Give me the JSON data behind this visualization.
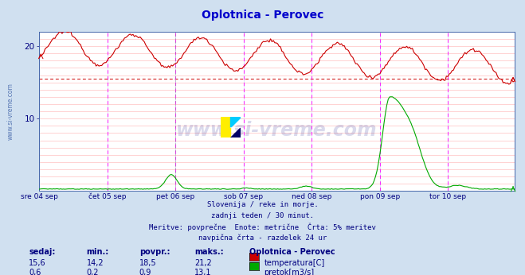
{
  "title": "Oplotnica - Perovec",
  "title_color": "#0000cc",
  "bg_color": "#d0e0f0",
  "plot_bg_color": "#ffffff",
  "grid_color": "#ffb0b0",
  "grid_color_h": "#c8d8f0",
  "xlabel_color": "#000080",
  "watermark_text": "www.si-vreme.com",
  "watermark_color": "#000080",
  "subtitle_lines": [
    "Slovenija / reke in morje.",
    "zadnji teden / 30 minut.",
    "Meritve: povprečne  Enote: metrične  Črta: 5% meritev",
    "navpična črta - razdelek 24 ur"
  ],
  "subtitle_color": "#000080",
  "left_label": "www.si-vreme.com",
  "left_label_color": "#4466aa",
  "ylim": [
    0,
    22
  ],
  "yticks": [
    10,
    20
  ],
  "avg_line_value": 15.5,
  "avg_line_color": "#cc0000",
  "vline_color": "#ff00ff",
  "vline_alpha": 0.8,
  "x_day_labels": [
    "sre 04 sep",
    "čet 05 sep",
    "pet 06 sep",
    "sob 07 sep",
    "ned 08 sep",
    "pon 09 sep",
    "tor 10 sep"
  ],
  "x_day_positions": [
    0,
    48,
    96,
    144,
    192,
    240,
    288
  ],
  "n_points": 336,
  "temp_color": "#cc0000",
  "flow_color": "#00aa00",
  "temp_min": 14.2,
  "temp_max": 21.2,
  "temp_avg": 18.5,
  "temp_current": 15.6,
  "flow_min": 0.2,
  "flow_max": 13.1,
  "flow_avg": 0.9,
  "flow_current": 0.6,
  "legend_title": "Oplotnica - Perovec",
  "legend_color": "#000080",
  "table_headers": [
    "sedaj:",
    "min.:",
    "povpr.:",
    "maks.:"
  ],
  "table_color": "#000080",
  "border_color": "#4466aa"
}
